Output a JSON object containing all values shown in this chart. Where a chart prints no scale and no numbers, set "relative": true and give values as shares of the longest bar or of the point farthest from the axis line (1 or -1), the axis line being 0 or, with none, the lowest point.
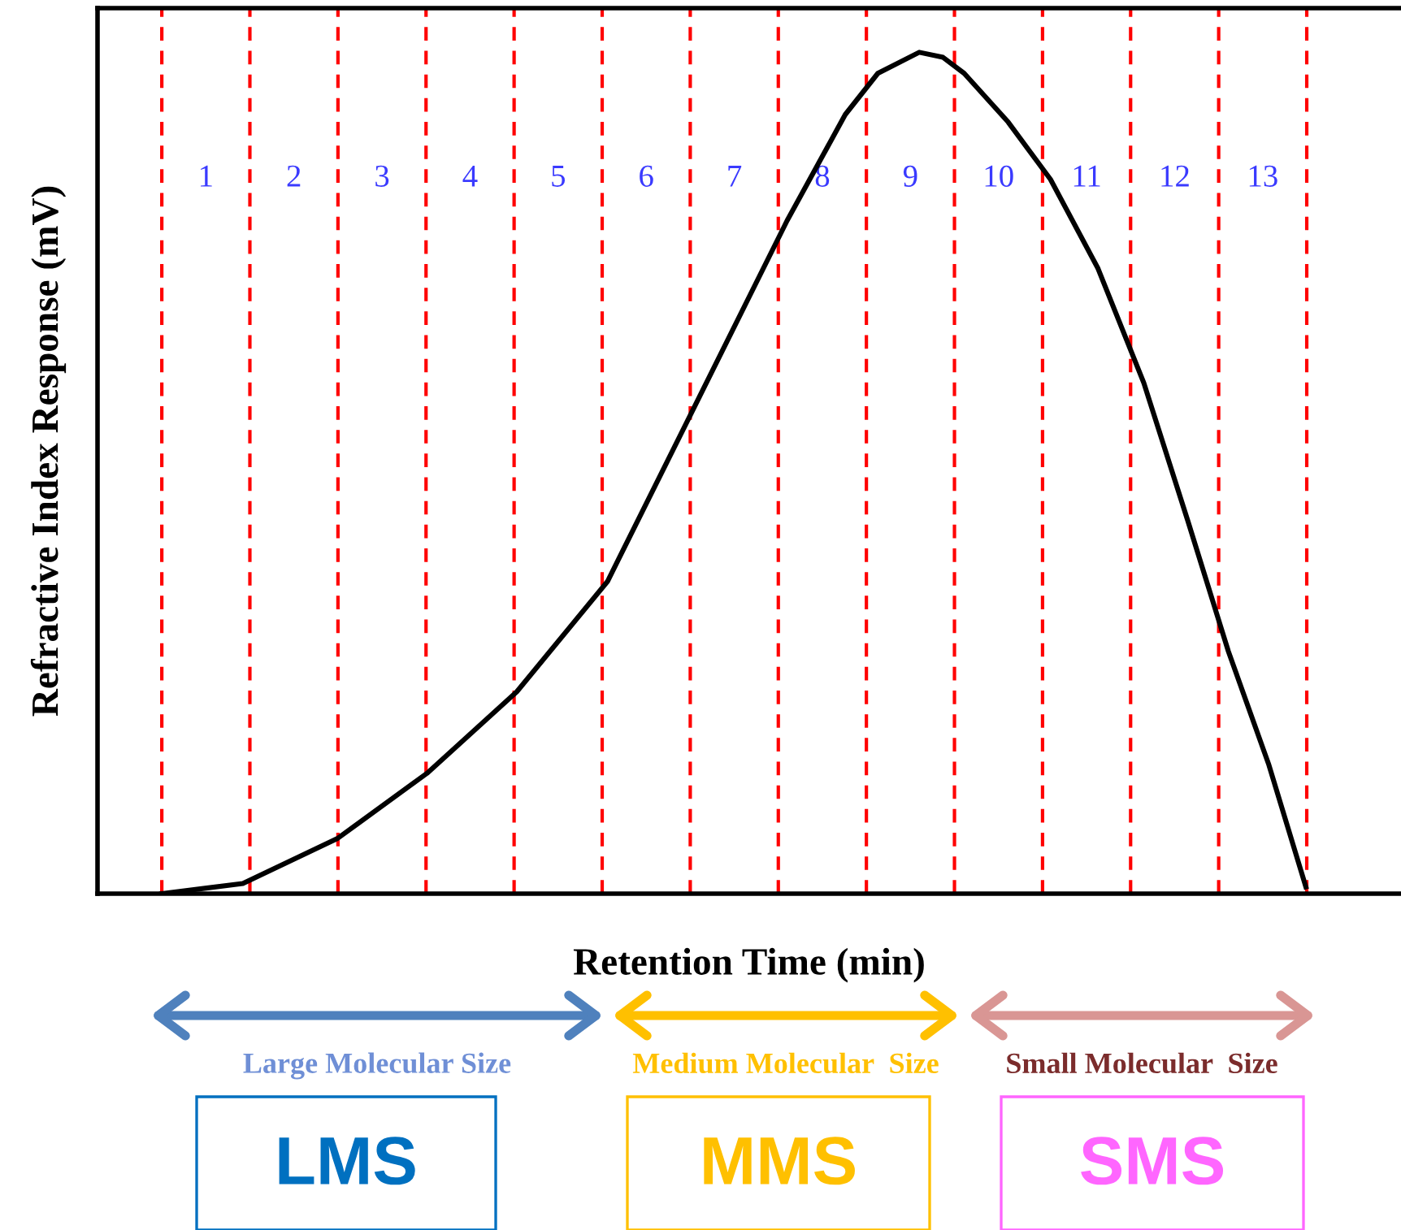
{
  "chart_data": {
    "type": "line",
    "relative": true,
    "ylabel": "Refractive Index Response (mV)",
    "xlabel": "Retention Time (min)",
    "xlim": [
      -0.73,
      14.07
    ],
    "xticks": [
      {
        "value": 0.5,
        "label": "1"
      },
      {
        "value": 1.5,
        "label": "2"
      },
      {
        "value": 2.5,
        "label": "3"
      },
      {
        "value": 3.5,
        "label": "4"
      },
      {
        "value": 4.5,
        "label": "5"
      },
      {
        "value": 5.5,
        "label": "6"
      },
      {
        "value": 6.5,
        "label": "7"
      },
      {
        "value": 7.5,
        "label": "8"
      },
      {
        "value": 8.5,
        "label": "9"
      },
      {
        "value": 9.5,
        "label": "10"
      },
      {
        "value": 10.5,
        "label": "11"
      },
      {
        "value": 11.5,
        "label": "12"
      },
      {
        "value": 12.5,
        "label": "13"
      }
    ],
    "series": [
      {
        "color": "#000000",
        "x": [
          0,
          0.92,
          2.0,
          3.01,
          4.03,
          5.06,
          6.14,
          7.1,
          7.76,
          8.13,
          8.6,
          8.87,
          9.11,
          9.61,
          10.09,
          10.63,
          11.15,
          11.65,
          12.11,
          12.57,
          12.99
        ],
        "values": [
          0,
          0.012,
          0.066,
          0.143,
          0.24,
          0.371,
          0.598,
          0.8,
          0.926,
          0.975,
          1.0,
          0.994,
          0.975,
          0.917,
          0.849,
          0.743,
          0.607,
          0.443,
          0.288,
          0.153,
          0.008
        ]
      }
    ],
    "ref_lines": [
      {
        "axis": "x",
        "value": 0,
        "color": "#ff0000",
        "line_style": "dashed"
      },
      {
        "axis": "x",
        "value": 1,
        "color": "#ff0000",
        "line_style": "dashed"
      },
      {
        "axis": "x",
        "value": 2,
        "color": "#ff0000",
        "line_style": "dashed"
      },
      {
        "axis": "x",
        "value": 3,
        "color": "#ff0000",
        "line_style": "dashed"
      },
      {
        "axis": "x",
        "value": 4,
        "color": "#ff0000",
        "line_style": "dashed"
      },
      {
        "axis": "x",
        "value": 5,
        "color": "#ff0000",
        "line_style": "dashed"
      },
      {
        "axis": "x",
        "value": 6,
        "color": "#ff0000",
        "line_style": "dashed"
      },
      {
        "axis": "x",
        "value": 7,
        "color": "#ff0000",
        "line_style": "dashed"
      },
      {
        "axis": "x",
        "value": 8,
        "color": "#ff0000",
        "line_style": "dashed"
      },
      {
        "axis": "x",
        "value": 9,
        "color": "#ff0000",
        "line_style": "dashed"
      },
      {
        "axis": "x",
        "value": 10,
        "color": "#ff0000",
        "line_style": "dashed"
      },
      {
        "axis": "x",
        "value": 11,
        "color": "#ff0000",
        "line_style": "dashed"
      },
      {
        "axis": "x",
        "value": 12,
        "color": "#ff0000",
        "line_style": "dashed"
      },
      {
        "axis": "x",
        "value": 13,
        "color": "#ff0000",
        "line_style": "dashed"
      }
    ],
    "annotations": [
      "Large Molecular Size",
      "Medium Molecular  Size",
      "Small Molecular  Size",
      "LMS",
      "MMS",
      "SMS"
    ],
    "grid": false
  }
}
